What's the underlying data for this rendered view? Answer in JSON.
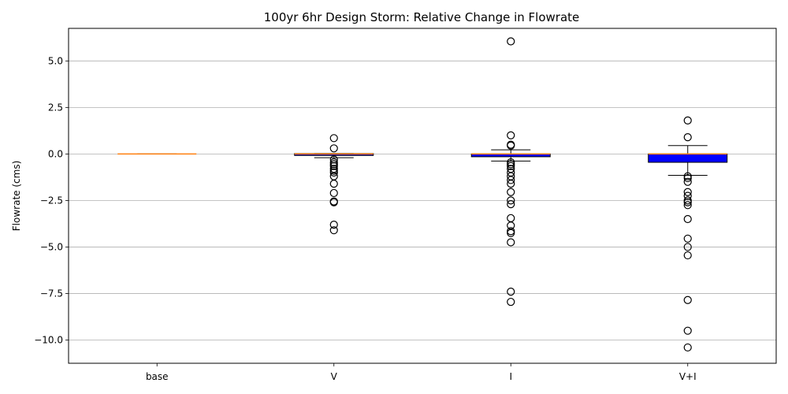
{
  "chart_data": {
    "type": "box",
    "title": "100yr 6hr Design Storm: Relative Change in Flowrate",
    "xlabel": "",
    "ylabel": "Flowrate (cms)",
    "ylim": [
      -11.25,
      6.75
    ],
    "yticks": [
      5.0,
      2.5,
      0.0,
      -2.5,
      -5.0,
      -7.5,
      -10.0
    ],
    "ytick_labels": [
      "5.0",
      "2.5",
      "0.0",
      "−2.5",
      "−5.0",
      "−7.5",
      "−10.0"
    ],
    "grid": "y",
    "categories": [
      "base",
      "V",
      "I",
      "V+I"
    ],
    "box_color": "#0000ff",
    "median_color": "#ff7f0e",
    "boxes": [
      {
        "label": "base",
        "whislo": 0.0,
        "q1": 0.0,
        "med": 0.0,
        "q3": 0.0,
        "whishi": 0.0,
        "fliers": []
      },
      {
        "label": "V",
        "whislo": -0.2,
        "q1": -0.08,
        "med": 0.0,
        "q3": 0.02,
        "whishi": 0.02,
        "fliers": [
          0.85,
          0.3,
          -0.3,
          -0.45,
          -0.55,
          -0.65,
          -0.8,
          -0.9,
          -1.0,
          -1.2,
          -1.6,
          -2.1,
          -2.55,
          -2.6,
          -3.8,
          -4.1
        ]
      },
      {
        "label": "I",
        "whislo": -0.38,
        "q1": -0.15,
        "med": 0.0,
        "q3": 0.0,
        "whishi": 0.22,
        "fliers": [
          6.05,
          1.0,
          0.5,
          0.45,
          -0.45,
          -0.55,
          -0.65,
          -0.8,
          -1.0,
          -1.2,
          -1.4,
          -1.6,
          -2.05,
          -2.5,
          -2.7,
          -3.45,
          -3.85,
          -4.15,
          -4.25,
          -4.75,
          -7.4,
          -7.95
        ]
      },
      {
        "label": "V+I",
        "whislo": -1.15,
        "q1": -0.45,
        "med": 0.0,
        "q3": 0.0,
        "whishi": 0.45,
        "fliers": [
          1.8,
          0.9,
          -1.2,
          -1.3,
          -1.5,
          -2.05,
          -2.25,
          -2.5,
          -2.6,
          -2.75,
          -3.5,
          -4.55,
          -5.0,
          -5.45,
          -7.85,
          -9.5,
          -10.4
        ]
      }
    ]
  }
}
